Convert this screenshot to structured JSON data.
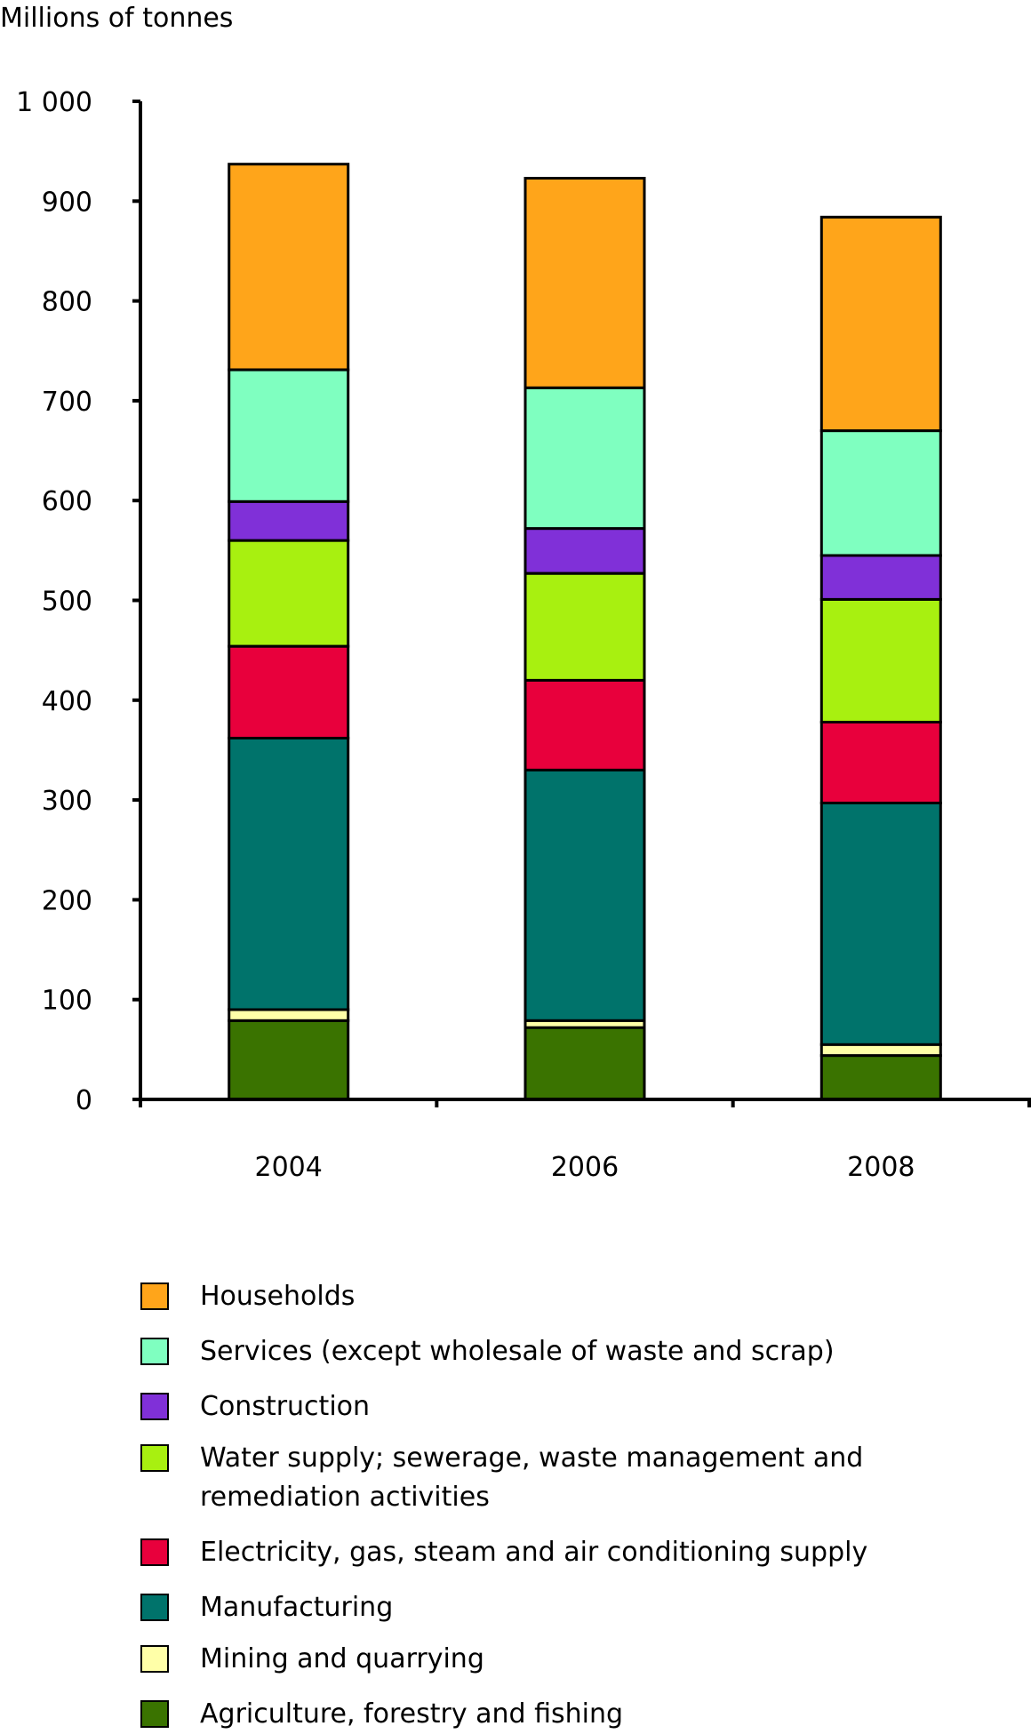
{
  "chart_data": {
    "type": "bar",
    "stacked": true,
    "title": "",
    "ylabel": "Millions of tonnes",
    "xlabel": "",
    "categories": [
      "2004",
      "2006",
      "2008"
    ],
    "ylim": [
      0,
      1000
    ],
    "yticks": [
      0,
      100,
      200,
      300,
      400,
      500,
      600,
      700,
      800,
      900,
      1000
    ],
    "ytick_labels": [
      "0",
      "100",
      "200",
      "300",
      "400",
      "500",
      "600",
      "700",
      "800",
      "900",
      "1 000"
    ],
    "grid": false,
    "legend_position": "bottom",
    "series": [
      {
        "name": "Agriculture, forestry and fishing",
        "color": "#3A7300",
        "values": [
          79,
          72,
          44
        ]
      },
      {
        "name": "Mining and quarrying",
        "color": "#FFFFA8",
        "values": [
          11,
          7,
          11
        ]
      },
      {
        "name": "Manufacturing",
        "color": "#00736B",
        "values": [
          272,
          251,
          242
        ]
      },
      {
        "name": "Electricity, gas, steam and air conditioning supply",
        "color": "#E8003C",
        "values": [
          92,
          90,
          81
        ]
      },
      {
        "name": "Water supply; sewerage, waste management and remediation activities",
        "color": "#A8F010",
        "values": [
          106,
          107,
          123
        ]
      },
      {
        "name": "Construction",
        "color": "#8030D8",
        "values": [
          39,
          45,
          44
        ]
      },
      {
        "name": "Services (except wholesale of waste and scrap)",
        "color": "#7FFFC0",
        "values": [
          132,
          141,
          125
        ]
      },
      {
        "name": "Households",
        "color": "#FFA51A",
        "values": [
          206,
          210,
          214
        ]
      }
    ],
    "totals": [
      937,
      923,
      884
    ]
  },
  "legend": {
    "items": [
      {
        "label": "Households",
        "color": "#FFA51A"
      },
      {
        "label": "Services (except wholesale of waste and scrap)",
        "color": "#7FFFC0"
      },
      {
        "label": "Construction",
        "color": "#8030D8"
      },
      {
        "label": "Water supply; sewerage, waste management and remediation activities",
        "color": "#A8F010"
      },
      {
        "label": "Electricity, gas, steam and air conditioning supply",
        "color": "#E8003C"
      },
      {
        "label": "Manufacturing",
        "color": "#00736B"
      },
      {
        "label": "Mining and quarrying",
        "color": "#FFFFA8"
      },
      {
        "label": "Agriculture, forestry and fishing",
        "color": "#3A7300"
      }
    ]
  }
}
